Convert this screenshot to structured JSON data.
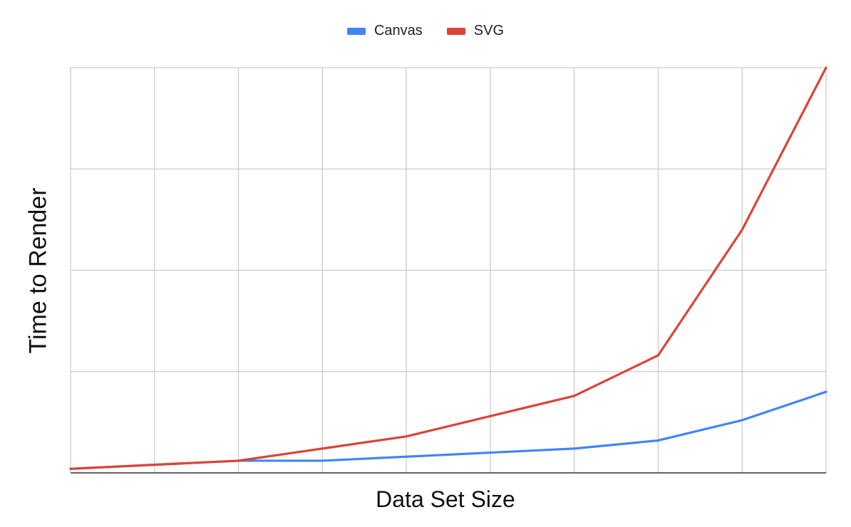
{
  "chart_data": {
    "type": "line",
    "title": "",
    "xlabel": "Data Set Size",
    "ylabel": "Time to Render",
    "x": [
      0,
      1,
      2,
      3,
      4,
      5,
      6,
      7,
      8,
      9
    ],
    "xlim": [
      0,
      9
    ],
    "ylim": [
      0,
      100
    ],
    "grid": true,
    "legend_position": "top",
    "series": [
      {
        "name": "Canvas",
        "color": "#4285F4",
        "values": [
          1,
          2,
          3,
          3,
          4,
          5,
          6,
          8,
          13,
          20
        ]
      },
      {
        "name": "SVG",
        "color": "#DB4437",
        "values": [
          1,
          2,
          3,
          6,
          9,
          14,
          19,
          29,
          60,
          100
        ]
      }
    ]
  }
}
